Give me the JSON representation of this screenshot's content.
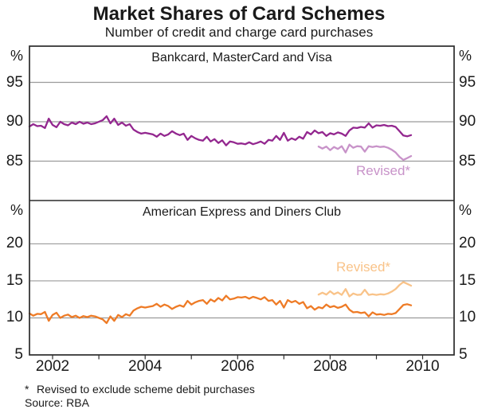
{
  "title": "Market Shares of Card Schemes",
  "subtitle": "Number of credit and charge card purchases",
  "footnote_marker": "*",
  "footnote": "Revised to exclude scheme debit purchases",
  "source": "Source: RBA",
  "chart_data": {
    "type": "line",
    "title": "Market Shares of Card Schemes",
    "subtitle": "Number of credit and charge card purchases",
    "x_domain": [
      2001.5,
      2010.68
    ],
    "x_tick_years": [
      2002,
      2003,
      2004,
      2005,
      2006,
      2007,
      2008,
      2009,
      2010
    ],
    "x_labels": [
      {
        "t": 2002,
        "text": "2002"
      },
      {
        "t": 2004,
        "text": "2004"
      },
      {
        "t": 2006,
        "text": "2006"
      },
      {
        "t": 2008,
        "text": "2008"
      },
      {
        "t": 2010,
        "text": "2010"
      }
    ],
    "frequency": "monthly",
    "panels": [
      {
        "title": "Bankcard, MasterCard and Visa",
        "unit": "%",
        "ylim": [
          80.0,
          99.6
        ],
        "yticks": [
          {
            "v": 95,
            "label": "95"
          },
          {
            "v": 90,
            "label": "90"
          },
          {
            "v": 85,
            "label": "85"
          }
        ],
        "edge_tick": null,
        "series": [
          {
            "id": "bmv-original",
            "name": "Bankcard, MasterCard and Visa",
            "color": "#93278F",
            "x_start": 2001.5,
            "values": [
              89.4,
              89.7,
              89.45,
              89.5,
              89.2,
              90.4,
              89.6,
              89.3,
              90.0,
              89.7,
              89.55,
              89.9,
              89.7,
              90.0,
              89.75,
              89.9,
              89.7,
              89.8,
              90.0,
              90.2,
              90.7,
              89.8,
              90.4,
              89.6,
              89.9,
              89.5,
              89.7,
              89.0,
              88.7,
              88.5,
              88.6,
              88.5,
              88.4,
              88.1,
              88.5,
              88.2,
              88.4,
              88.8,
              88.5,
              88.3,
              88.5,
              87.7,
              88.2,
              87.9,
              87.7,
              87.6,
              88.1,
              87.5,
              87.8,
              87.3,
              87.65,
              87.0,
              87.5,
              87.4,
              87.2,
              87.25,
              87.15,
              87.4,
              87.15,
              87.3,
              87.5,
              87.2,
              87.7,
              87.6,
              88.2,
              87.7,
              88.6,
              87.6,
              87.9,
              87.7,
              88.1,
              87.85,
              88.7,
              88.4,
              88.9,
              88.55,
              88.7,
              88.2,
              88.55,
              88.4,
              88.65,
              88.5,
              88.2,
              88.9,
              89.25,
              89.2,
              89.35,
              89.25,
              89.8,
              89.25,
              89.55,
              89.5,
              89.6,
              89.45,
              89.5,
              89.35,
              88.8,
              88.25,
              88.15,
              88.3
            ]
          },
          {
            "id": "bmv-revised",
            "name": "Revised",
            "annotation": "Revised*",
            "color": "#C893C9",
            "x_start": 2007.75,
            "values": [
              86.85,
              86.6,
              86.85,
              86.4,
              86.8,
              86.55,
              86.9,
              86.1,
              87.1,
              86.7,
              86.9,
              86.85,
              86.2,
              86.9,
              86.8,
              86.9,
              86.8,
              86.85,
              86.7,
              86.45,
              86.1,
              85.55,
              85.15,
              85.4,
              85.65
            ]
          }
        ]
      },
      {
        "title": "American Express and Diners Club",
        "unit": "%",
        "ylim": [
          5.0,
          25.85
        ],
        "yticks": [
          {
            "v": 20,
            "label": "20"
          },
          {
            "v": 15,
            "label": "15"
          },
          {
            "v": 10,
            "label": "10"
          }
        ],
        "edge_tick": {
          "v": 5,
          "label": "5"
        },
        "series": [
          {
            "id": "amex-diners-original",
            "name": "American Express and Diners Club",
            "color": "#EE7B26",
            "x_start": 2001.5,
            "values": [
              10.6,
              10.3,
              10.55,
              10.5,
              10.8,
              9.6,
              10.4,
              10.7,
              10.0,
              10.3,
              10.45,
              10.1,
              10.3,
              10.0,
              10.25,
              10.1,
              10.3,
              10.2,
              10.0,
              9.8,
              9.3,
              10.2,
              9.6,
              10.4,
              10.1,
              10.5,
              10.3,
              11.0,
              11.3,
              11.5,
              11.4,
              11.5,
              11.6,
              11.9,
              11.5,
              11.8,
              11.6,
              11.2,
              11.5,
              11.7,
              11.5,
              12.3,
              11.8,
              12.1,
              12.3,
              12.4,
              11.9,
              12.5,
              12.2,
              12.7,
              12.35,
              13.0,
              12.5,
              12.6,
              12.8,
              12.75,
              12.85,
              12.6,
              12.85,
              12.7,
              12.5,
              12.8,
              12.3,
              12.4,
              11.8,
              12.3,
              11.4,
              12.4,
              12.1,
              12.3,
              11.9,
              12.15,
              11.3,
              11.6,
              11.1,
              11.45,
              11.3,
              11.8,
              11.45,
              11.6,
              11.35,
              11.5,
              11.8,
              11.1,
              10.75,
              10.8,
              10.65,
              10.75,
              10.2,
              10.75,
              10.45,
              10.5,
              10.4,
              10.55,
              10.5,
              10.65,
              11.2,
              11.75,
              11.85,
              11.7
            ]
          },
          {
            "id": "amex-diners-revised",
            "name": "Revised",
            "annotation": "Revised*",
            "color": "#F9C389",
            "x_start": 2007.75,
            "values": [
              13.15,
              13.4,
              13.15,
              13.6,
              13.2,
              13.45,
              13.1,
              13.9,
              12.9,
              13.3,
              13.1,
              13.15,
              13.8,
              13.1,
              13.2,
              13.1,
              13.2,
              13.15,
              13.3,
              13.55,
              13.9,
              14.45,
              14.85,
              14.6,
              14.35
            ]
          }
        ]
      }
    ]
  }
}
